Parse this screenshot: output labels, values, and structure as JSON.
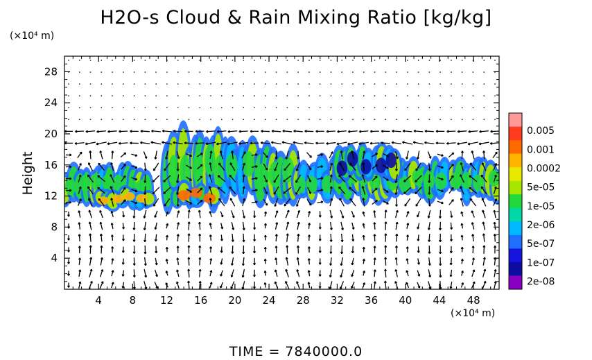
{
  "title": "H2O-s Cloud & Rain Mixing Ratio [kg/kg]",
  "time_label": "TIME  =  7840000.0",
  "chart_data": {
    "type": "heatmap",
    "title": "H2O-s Cloud & Rain Mixing Ratio [kg/kg]",
    "xlabel": "",
    "ylabel": "Height",
    "x_unit": "(×10⁴ m)",
    "y_unit": "(×10⁴ m)",
    "xlim": [
      0,
      51
    ],
    "ylim": [
      0,
      30
    ],
    "xticks": [
      4,
      8,
      12,
      16,
      20,
      24,
      28,
      32,
      36,
      40,
      44,
      48
    ],
    "yticks": [
      4,
      8,
      12,
      16,
      20,
      24,
      28
    ],
    "colorbar": {
      "levels": [
        "0.005",
        "0.001",
        "0.0002",
        "5e-05",
        "1e-05",
        "2e-06",
        "5e-07",
        "1e-07",
        "2e-08"
      ],
      "colors": [
        "#ff9a9a",
        "#ff3c1e",
        "#ff6a00",
        "#ffb400",
        "#e8e800",
        "#a6e600",
        "#22d83c",
        "#00d8a8",
        "#00b8ff",
        "#1e6eff",
        "#1414dc",
        "#0c0ca0",
        "#8a00c0"
      ]
    },
    "cloud_regions": [
      {
        "x": [
          0,
          10
        ],
        "y": [
          11,
          16
        ],
        "level": "1e-05"
      },
      {
        "x": [
          4,
          10
        ],
        "y": [
          10.5,
          13
        ],
        "level": "0.0002"
      },
      {
        "x": [
          12,
          19
        ],
        "y": [
          10.5,
          20
        ],
        "level": "1e-05"
      },
      {
        "x": [
          13,
          18
        ],
        "y": [
          10.5,
          13.5
        ],
        "level": "0.001"
      },
      {
        "x": [
          19,
          27
        ],
        "y": [
          11.5,
          19
        ],
        "level": "1e-05"
      },
      {
        "x": [
          27,
          51
        ],
        "y": [
          11.5,
          16.5
        ],
        "level": "1e-05"
      },
      {
        "x": [
          32,
          39
        ],
        "y": [
          14,
          18.5
        ],
        "level": "1e-07"
      }
    ],
    "overlay": "wind vectors"
  }
}
